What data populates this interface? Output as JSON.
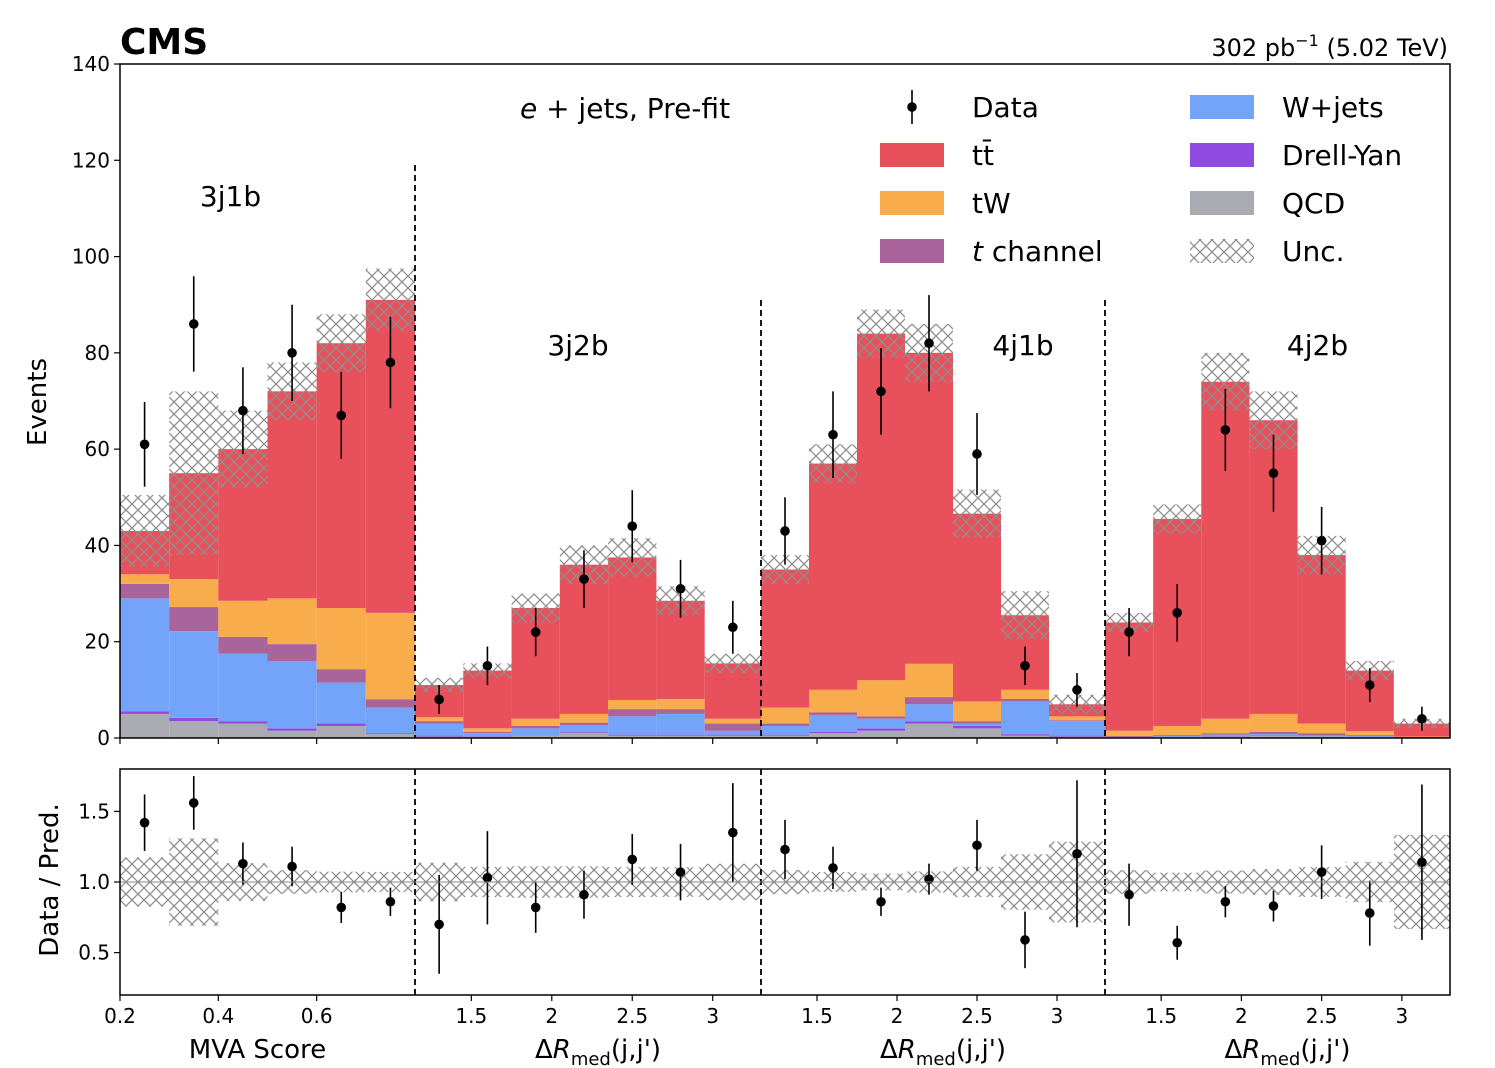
{
  "chart_data": {
    "type": "bar",
    "experiment": "CMS",
    "lumi_value": "302 pb",
    "lumi_exp": "−1",
    "lumi_energy": " (5.02 TeV)",
    "annotation": "e + jets, Pre-fit",
    "annotation_italic": "e",
    "annotation_rest": " + jets, Pre-fit",
    "ylabel": "Events",
    "ratio_ylabel": "Data / Pred.",
    "ylim": [
      0,
      140
    ],
    "ratio_ylim": [
      0.2,
      1.8
    ],
    "yticks": [
      "0",
      "20",
      "40",
      "60",
      "80",
      "100",
      "120",
      "140"
    ],
    "ratio_yticks": [
      "0.5",
      "1.0",
      "1.5"
    ],
    "colors": {
      "ttbar": "#e8505b",
      "tW": "#f8ac4b",
      "tchannel": "#a8649b",
      "wjets": "#74a4fa",
      "dy": "#8e4ae1",
      "qcd": "#aaaab2",
      "hatch": "#8e8e8e"
    },
    "legend": [
      {
        "key": "data",
        "label": "Data"
      },
      {
        "key": "wjets",
        "label": "W+jets"
      },
      {
        "key": "ttbar",
        "label": "tt̄"
      },
      {
        "key": "dy",
        "label": "Drell-Yan"
      },
      {
        "key": "tW",
        "label": "tW"
      },
      {
        "key": "qcd",
        "label": "QCD"
      },
      {
        "key": "tchannel",
        "label": "t channel",
        "italic_prefix": "t",
        "rest": " channel"
      },
      {
        "key": "unc",
        "label": "Unc."
      }
    ],
    "regions": [
      {
        "name": "3j1b",
        "xlabel": "MVA Score",
        "x_range": [
          0.2,
          0.8
        ],
        "xticks": [
          "0.2",
          "0.4",
          "0.6"
        ],
        "xtick_values": [
          0.2,
          0.4,
          0.6
        ],
        "bins": [
          [
            0.2,
            0.3
          ],
          [
            0.3,
            0.4
          ],
          [
            0.4,
            0.5
          ],
          [
            0.5,
            0.6
          ],
          [
            0.6,
            0.7
          ],
          [
            0.7,
            0.8
          ]
        ],
        "qcd": [
          5.0,
          3.5,
          3.0,
          1.5,
          2.5,
          0.8
        ],
        "dy": [
          0.5,
          0.7,
          0.5,
          0.5,
          0.5,
          0.2
        ],
        "wjets": [
          23.5,
          18.0,
          14.0,
          14.0,
          8.5,
          5.3
        ],
        "tchannel": [
          3.0,
          5.0,
          3.5,
          3.5,
          2.8,
          1.7
        ],
        "tW": [
          2.0,
          5.8,
          7.5,
          9.5,
          12.7,
          18.0
        ],
        "ttbar": [
          9.0,
          22.0,
          31.5,
          43.0,
          55.0,
          65.0
        ],
        "unc": [
          7.5,
          17.0,
          8.0,
          6.0,
          6.0,
          6.5
        ],
        "data": [
          61,
          86,
          68,
          80,
          67,
          78
        ],
        "data_err": [
          8.8,
          9.9,
          9.0,
          10.0,
          9.0,
          9.5
        ],
        "ratio": [
          1.42,
          1.56,
          1.13,
          1.11,
          0.82,
          0.86
        ],
        "ratio_err": [
          0.2,
          0.19,
          0.15,
          0.14,
          0.11,
          0.1
        ]
      },
      {
        "name": "3j2b",
        "xlabel": "ΔRmed(j,j')",
        "x_range": [
          1.15,
          3.3
        ],
        "xticks": [
          "1.5",
          "2",
          "2.5",
          "3"
        ],
        "xtick_values": [
          1.5,
          2.0,
          2.5,
          3.0
        ],
        "bins": [
          [
            1.15,
            1.45
          ],
          [
            1.45,
            1.75
          ],
          [
            1.75,
            2.05
          ],
          [
            2.05,
            2.35
          ],
          [
            2.35,
            2.65
          ],
          [
            2.65,
            2.95
          ],
          [
            2.95,
            3.3
          ]
        ],
        "qcd": [
          0.3,
          0.3,
          0.5,
          1.0,
          0.5,
          0.5,
          0.5
        ],
        "dy": [
          0.2,
          0.1,
          0.1,
          0.2,
          0.2,
          0.2,
          0.2
        ],
        "wjets": [
          2.5,
          0.6,
          1.4,
          1.5,
          3.8,
          4.3,
          0.8
        ],
        "tchannel": [
          0.5,
          0.3,
          0.5,
          0.5,
          1.5,
          1.0,
          1.5
        ],
        "tW": [
          0.8,
          0.7,
          1.5,
          1.8,
          1.9,
          2.1,
          1.0
        ],
        "ttbar": [
          6.7,
          12.0,
          23.0,
          31.0,
          29.6,
          20.4,
          11.5
        ],
        "unc": [
          1.5,
          1.5,
          3.0,
          4.0,
          4.0,
          3.0,
          2.0
        ],
        "data": [
          8,
          15,
          22,
          33,
          44,
          31,
          23
        ],
        "data_err": [
          3.0,
          4.0,
          5.0,
          6.0,
          7.5,
          6.0,
          5.5
        ],
        "ratio": [
          0.7,
          1.03,
          0.82,
          0.91,
          1.16,
          1.07,
          1.35
        ],
        "ratio_err": [
          0.35,
          0.33,
          0.18,
          0.17,
          0.18,
          0.2,
          0.35
        ]
      },
      {
        "name": "4j1b",
        "xlabel": "ΔRmed(j,j')",
        "x_range": [
          1.15,
          3.3
        ],
        "xticks": [
          "1.5",
          "2",
          "2.5",
          "3"
        ],
        "xtick_values": [
          1.5,
          2.0,
          2.5,
          3.0
        ],
        "bins": [
          [
            1.15,
            1.45
          ],
          [
            1.45,
            1.75
          ],
          [
            1.75,
            2.05
          ],
          [
            2.05,
            2.35
          ],
          [
            2.35,
            2.65
          ],
          [
            2.65,
            2.95
          ],
          [
            2.95,
            3.3
          ]
        ],
        "qcd": [
          0.5,
          1.0,
          1.5,
          3.0,
          2.0,
          0.5,
          0.3
        ],
        "dy": [
          0.2,
          0.3,
          0.5,
          0.5,
          0.5,
          0.3,
          0.2
        ],
        "wjets": [
          1.8,
          3.5,
          2.0,
          3.5,
          0.5,
          6.8,
          3.0
        ],
        "tchannel": [
          0.5,
          0.5,
          0.5,
          1.5,
          0.5,
          0.5,
          0.2
        ],
        "tW": [
          3.3,
          4.7,
          7.5,
          6.9,
          4.1,
          1.9,
          0.8
        ],
        "ttbar": [
          28.7,
          47.0,
          72.0,
          64.6,
          39.0,
          15.5,
          2.5
        ],
        "unc": [
          3.0,
          4.0,
          5.0,
          6.0,
          5.0,
          5.0,
          2.0
        ],
        "data": [
          43,
          63,
          72,
          82,
          59,
          15,
          10
        ],
        "data_err": [
          7.0,
          9.0,
          9.0,
          10.0,
          8.5,
          4.0,
          3.5
        ],
        "ratio": [
          1.23,
          1.1,
          0.86,
          1.02,
          1.26,
          0.59,
          1.2
        ],
        "ratio_err": [
          0.21,
          0.15,
          0.1,
          0.11,
          0.18,
          0.2,
          0.52
        ]
      },
      {
        "name": "4j2b",
        "xlabel": "ΔRmed(j,j')",
        "x_range": [
          1.15,
          3.3
        ],
        "xticks": [
          "1.5",
          "2",
          "2.5",
          "3"
        ],
        "xtick_values": [
          1.5,
          2.0,
          2.5,
          3.0
        ],
        "bins": [
          [
            1.15,
            1.45
          ],
          [
            1.45,
            1.75
          ],
          [
            1.75,
            2.05
          ],
          [
            2.05,
            2.35
          ],
          [
            2.35,
            2.65
          ],
          [
            2.65,
            2.95
          ],
          [
            2.95,
            3.3
          ]
        ],
        "qcd": [
          0.1,
          0.2,
          0.3,
          0.4,
          0.3,
          0.2,
          0.1
        ],
        "dy": [
          0.0,
          0.0,
          0.1,
          0.1,
          0.0,
          0.0,
          0.0
        ],
        "wjets": [
          0.1,
          0.2,
          0.3,
          0.3,
          0.2,
          0.2,
          0.0
        ],
        "tchannel": [
          0.2,
          0.2,
          0.3,
          0.5,
          0.5,
          0.2,
          0.1
        ],
        "tW": [
          1.1,
          1.9,
          3.0,
          3.7,
          2.0,
          0.8,
          0.1
        ],
        "ttbar": [
          22.5,
          43.0,
          70.0,
          61.0,
          35.0,
          12.6,
          2.7
        ],
        "unc": [
          2.0,
          3.0,
          6.0,
          6.0,
          4.0,
          2.0,
          1.0
        ],
        "data": [
          22,
          26,
          64,
          55,
          41,
          11,
          4
        ],
        "data_err": [
          5.0,
          6.0,
          8.5,
          8.0,
          7.0,
          3.5,
          2.5
        ],
        "ratio": [
          0.91,
          0.57,
          0.86,
          0.83,
          1.07,
          0.78,
          1.14
        ],
        "ratio_err": [
          0.22,
          0.12,
          0.11,
          0.11,
          0.19,
          0.23,
          0.55
        ]
      }
    ]
  }
}
